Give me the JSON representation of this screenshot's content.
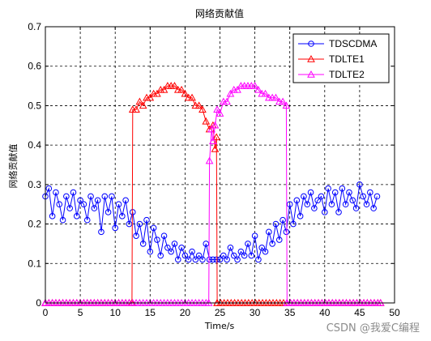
{
  "chart_data": {
    "type": "line",
    "title": "网络贡献值",
    "xlabel": "Time/s",
    "ylabel": "网络贡献值",
    "xlim": [
      0,
      50
    ],
    "ylim": [
      0,
      0.7
    ],
    "xticks": [
      "0",
      "5",
      "10",
      "15",
      "20",
      "25",
      "30",
      "35",
      "40",
      "45",
      "50"
    ],
    "yticks": [
      "0",
      "0.1",
      "0.2",
      "0.3",
      "0.4",
      "0.5",
      "0.6",
      "0.7"
    ],
    "grid": true,
    "legend_position": "top-right",
    "series": [
      {
        "name": "TDSCDMA",
        "color": "#0000ff",
        "marker": "circle",
        "x": [
          0,
          0.5,
          1,
          1.5,
          2,
          2.5,
          3,
          3.5,
          4,
          4.5,
          5,
          5.5,
          6,
          6.5,
          7,
          7.5,
          8,
          8.5,
          9,
          9.5,
          10,
          10.5,
          11,
          11.5,
          12,
          12.5,
          13,
          13.5,
          14,
          14.5,
          15,
          15.5,
          16,
          16.5,
          17,
          17.5,
          18,
          18.5,
          19,
          19.5,
          20,
          20.5,
          21,
          21.5,
          22,
          22.5,
          23,
          23.5,
          24,
          24.5,
          25,
          25.5,
          26,
          26.5,
          27,
          27.5,
          28,
          28.5,
          29,
          29.5,
          30,
          30.5,
          31,
          31.5,
          32,
          32.5,
          33,
          33.5,
          34,
          34.5,
          35,
          35.5,
          36,
          36.5,
          37,
          37.5,
          38,
          38.5,
          39,
          39.5,
          40,
          40.5,
          41,
          41.5,
          42,
          42.5,
          43,
          43.5,
          44,
          44.5,
          45,
          45.5,
          46,
          46.5,
          47,
          47.5
        ],
        "values": [
          0.27,
          0.29,
          0.22,
          0.28,
          0.25,
          0.21,
          0.27,
          0.24,
          0.28,
          0.22,
          0.26,
          0.25,
          0.21,
          0.27,
          0.24,
          0.26,
          0.18,
          0.27,
          0.23,
          0.27,
          0.19,
          0.25,
          0.22,
          0.26,
          0.2,
          0.23,
          0.17,
          0.2,
          0.15,
          0.21,
          0.13,
          0.19,
          0.16,
          0.12,
          0.17,
          0.14,
          0.13,
          0.15,
          0.11,
          0.14,
          0.12,
          0.11,
          0.13,
          0.11,
          0.12,
          0.11,
          0.15,
          0.11,
          0.11,
          0.11,
          0.11,
          0.12,
          0.11,
          0.14,
          0.12,
          0.11,
          0.13,
          0.12,
          0.15,
          0.12,
          0.17,
          0.11,
          0.14,
          0.13,
          0.18,
          0.15,
          0.2,
          0.16,
          0.21,
          0.18,
          0.25,
          0.2,
          0.26,
          0.22,
          0.27,
          0.25,
          0.28,
          0.24,
          0.26,
          0.27,
          0.23,
          0.29,
          0.25,
          0.28,
          0.23,
          0.29,
          0.25,
          0.28,
          0.26,
          0.24,
          0.3,
          0.27,
          0.25,
          0.28,
          0.24,
          0.27
        ]
      },
      {
        "name": "TDLTE1",
        "color": "#ff0000",
        "marker": "triangle",
        "x": [
          0,
          12.4,
          12.5,
          13,
          13.5,
          14,
          14.5,
          15,
          15.5,
          16,
          16.5,
          17,
          17.5,
          18,
          18.5,
          19,
          19.5,
          20,
          20.5,
          21,
          21.5,
          22,
          22.5,
          23,
          23.5,
          24,
          24.3,
          24.5,
          24.6,
          48
        ],
        "values": [
          0,
          0,
          0.49,
          0.49,
          0.51,
          0.5,
          0.52,
          0.52,
          0.53,
          0.53,
          0.54,
          0.54,
          0.55,
          0.55,
          0.55,
          0.54,
          0.54,
          0.53,
          0.52,
          0.52,
          0.5,
          0.5,
          0.49,
          0.46,
          0.44,
          0.45,
          0.39,
          0.42,
          0,
          0
        ]
      },
      {
        "name": "TDLTE2",
        "color": "#ff00ff",
        "marker": "triangle",
        "x": [
          0,
          23.4,
          23.5,
          23.8,
          24,
          24.3,
          24.6,
          25,
          25.5,
          26,
          26.5,
          27,
          27.5,
          28,
          28.5,
          29,
          29.5,
          30,
          30.5,
          31,
          31.5,
          32,
          32.5,
          33,
          33.5,
          34,
          34.5,
          34.6,
          48
        ],
        "values": [
          0,
          0,
          0.36,
          0.44,
          0.41,
          0.45,
          0.49,
          0.48,
          0.51,
          0.51,
          0.53,
          0.54,
          0.54,
          0.55,
          0.55,
          0.55,
          0.55,
          0.55,
          0.54,
          0.53,
          0.53,
          0.52,
          0.52,
          0.52,
          0.51,
          0.51,
          0.5,
          0,
          0
        ]
      }
    ]
  },
  "watermark": "CSDN @我爱C编程"
}
